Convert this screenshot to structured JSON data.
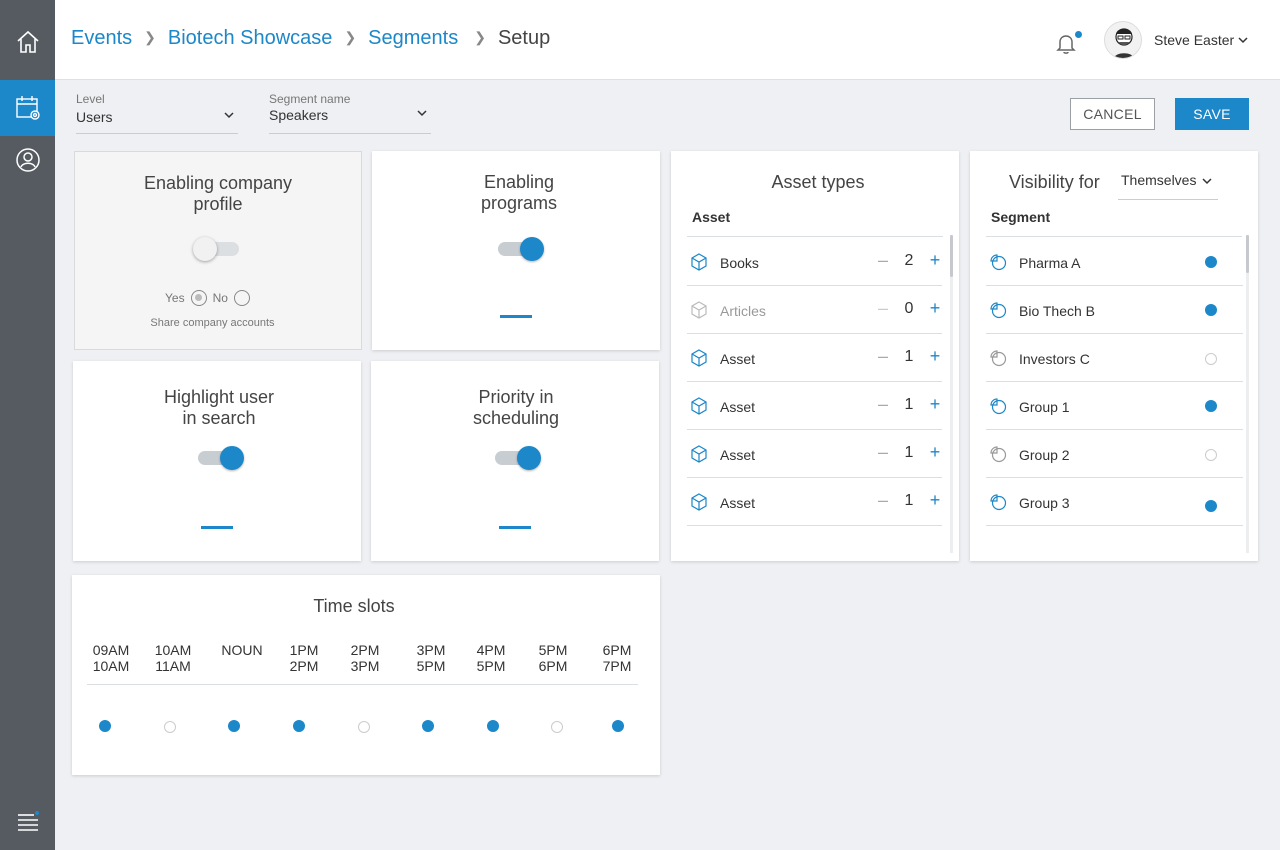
{
  "sidebar": {
    "items": [
      {
        "name": "home-icon"
      },
      {
        "name": "calendar-settings-icon",
        "active": true
      },
      {
        "name": "user-circle-icon"
      }
    ],
    "menu_icon": "hamburger-icon"
  },
  "header": {
    "breadcrumb": [
      "Events",
      "Biotech Showcase",
      "Segments"
    ],
    "current": "Setup",
    "user": {
      "name": "Steve Easter"
    }
  },
  "filters": {
    "level": {
      "label": "Level",
      "value": "Users"
    },
    "segment": {
      "label": "Segment name",
      "value": "Speakers"
    }
  },
  "actions": {
    "cancel": "CANCEL",
    "save": "SAVE"
  },
  "cards": {
    "company_profile": {
      "title_l1": "Enabling company",
      "title_l2": "profile",
      "enabled": false,
      "yes": "Yes",
      "no": "No",
      "note": "Share company accounts"
    },
    "programs": {
      "title_l1": "Enabling",
      "title_l2": "programs",
      "enabled": true
    },
    "highlight": {
      "title_l1": "Highlight user",
      "title_l2": "in search",
      "enabled": true
    },
    "priority": {
      "title_l1": "Priority in",
      "title_l2": "scheduling",
      "enabled": true
    }
  },
  "asset_types": {
    "title": "Asset types",
    "column": "Asset",
    "rows": [
      {
        "name": "Books",
        "count": "2",
        "dim": false
      },
      {
        "name": "Articles",
        "count": "0",
        "dim": true
      },
      {
        "name": "Asset",
        "count": "1",
        "dim": false
      },
      {
        "name": "Asset",
        "count": "1",
        "dim": false
      },
      {
        "name": "Asset",
        "count": "1",
        "dim": false
      },
      {
        "name": "Asset",
        "count": "1",
        "dim": false
      }
    ]
  },
  "visibility": {
    "title": "Visibility for",
    "select": "Themselves",
    "column": "Segment",
    "rows": [
      {
        "name": "Pharma A",
        "on": true
      },
      {
        "name": "Bio Thech B",
        "on": true
      },
      {
        "name": "Investors C",
        "on": false
      },
      {
        "name": "Group 1",
        "on": true
      },
      {
        "name": "Group 2",
        "on": false
      },
      {
        "name": "Group 3",
        "on": true
      }
    ]
  },
  "time_slots": {
    "title": "Time slots",
    "slots": [
      {
        "l1": "09AM",
        "l2": "10AM",
        "on": true
      },
      {
        "l1": "10AM",
        "l2": "11AM",
        "on": false
      },
      {
        "l1": "NOUN",
        "l2": "",
        "on": true
      },
      {
        "l1": "1PM",
        "l2": "2PM",
        "on": true
      },
      {
        "l1": "2PM",
        "l2": "3PM",
        "on": false
      },
      {
        "l1": "3PM",
        "l2": "5PM",
        "on": true
      },
      {
        "l1": "4PM",
        "l2": "5PM",
        "on": true
      },
      {
        "l1": "5PM",
        "l2": "6PM",
        "on": false
      },
      {
        "l1": "6PM",
        "l2": "7PM",
        "on": true
      }
    ]
  },
  "colors": {
    "accent": "#1c87c9",
    "sidebar": "#555b60",
    "background": "#eef0f3"
  }
}
